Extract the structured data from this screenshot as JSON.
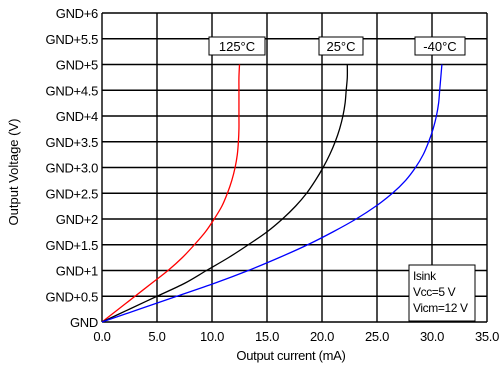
{
  "chart_data": {
    "type": "line",
    "xlabel": "Output current (mA)",
    "ylabel": "Output Voltage (V)",
    "xlim": [
      0,
      35
    ],
    "ylim": [
      0,
      6
    ],
    "x_ticks": [
      {
        "value": 0,
        "label": "0.0"
      },
      {
        "value": 5,
        "label": "5.0"
      },
      {
        "value": 10,
        "label": "10.0"
      },
      {
        "value": 15,
        "label": "15.0"
      },
      {
        "value": 20,
        "label": "20.0"
      },
      {
        "value": 25,
        "label": "25.0"
      },
      {
        "value": 30,
        "label": "30.0"
      },
      {
        "value": 35,
        "label": "35.0"
      }
    ],
    "y_ticks": [
      {
        "value": 0,
        "label": "GND"
      },
      {
        "value": 0.5,
        "label": "GND+0.5"
      },
      {
        "value": 1,
        "label": "GND+1"
      },
      {
        "value": 1.5,
        "label": "GND+1.5"
      },
      {
        "value": 2,
        "label": "GND+2"
      },
      {
        "value": 2.5,
        "label": "GND+2.5"
      },
      {
        "value": 3,
        "label": "GND+3.0"
      },
      {
        "value": 3.5,
        "label": "GND+3.5"
      },
      {
        "value": 4,
        "label": "GND+4"
      },
      {
        "value": 4.5,
        "label": "GND+4.5"
      },
      {
        "value": 5,
        "label": "GND+5"
      },
      {
        "value": 5.5,
        "label": "GND+5.5"
      },
      {
        "value": 6,
        "label": "GND+6"
      }
    ],
    "grid": true,
    "series": [
      {
        "name": "125°C",
        "color": "#ff0000",
        "points": [
          [
            0,
            0
          ],
          [
            1.5,
            0.25
          ],
          [
            3,
            0.5
          ],
          [
            4.5,
            0.75
          ],
          [
            6,
            1.0
          ],
          [
            7.3,
            1.25
          ],
          [
            8.4,
            1.5
          ],
          [
            9.4,
            1.75
          ],
          [
            10.2,
            2.0
          ],
          [
            10.9,
            2.25
          ],
          [
            11.4,
            2.5
          ],
          [
            11.8,
            2.75
          ],
          [
            12.1,
            3.0
          ],
          [
            12.3,
            3.25
          ],
          [
            12.4,
            3.5
          ],
          [
            12.45,
            3.75
          ],
          [
            12.45,
            4.0
          ],
          [
            12.45,
            4.25
          ],
          [
            12.45,
            4.5
          ],
          [
            12.45,
            4.75
          ],
          [
            12.5,
            5.0
          ]
        ]
      },
      {
        "name": "25°C",
        "color": "#000000",
        "points": [
          [
            0,
            0
          ],
          [
            2.5,
            0.25
          ],
          [
            5,
            0.5
          ],
          [
            7.5,
            0.75
          ],
          [
            9.5,
            1.0
          ],
          [
            11.5,
            1.25
          ],
          [
            13.3,
            1.5
          ],
          [
            15,
            1.75
          ],
          [
            16.4,
            2.0
          ],
          [
            17.6,
            2.25
          ],
          [
            18.6,
            2.5
          ],
          [
            19.4,
            2.75
          ],
          [
            20.1,
            3.0
          ],
          [
            20.7,
            3.25
          ],
          [
            21.2,
            3.5
          ],
          [
            21.6,
            3.75
          ],
          [
            21.9,
            4.0
          ],
          [
            22.1,
            4.25
          ],
          [
            22.2,
            4.5
          ],
          [
            22.3,
            4.75
          ],
          [
            22.3,
            5.0
          ]
        ]
      },
      {
        "name": "-40°C",
        "color": "#0000ff",
        "points": [
          [
            0,
            0
          ],
          [
            3.4,
            0.25
          ],
          [
            6.8,
            0.5
          ],
          [
            10.2,
            0.75
          ],
          [
            13.3,
            1.0
          ],
          [
            16.1,
            1.25
          ],
          [
            18.7,
            1.5
          ],
          [
            21,
            1.75
          ],
          [
            23.1,
            2.0
          ],
          [
            24.9,
            2.25
          ],
          [
            26.4,
            2.5
          ],
          [
            27.6,
            2.75
          ],
          [
            28.5,
            3.0
          ],
          [
            29.2,
            3.25
          ],
          [
            29.7,
            3.5
          ],
          [
            30.1,
            3.75
          ],
          [
            30.4,
            4.0
          ],
          [
            30.6,
            4.25
          ],
          [
            30.7,
            4.5
          ],
          [
            30.8,
            4.75
          ],
          [
            30.9,
            5.0
          ]
        ]
      }
    ],
    "annotation_lines": [
      "Isink",
      "Vcc=5 V",
      "Vicm=12 V"
    ]
  }
}
